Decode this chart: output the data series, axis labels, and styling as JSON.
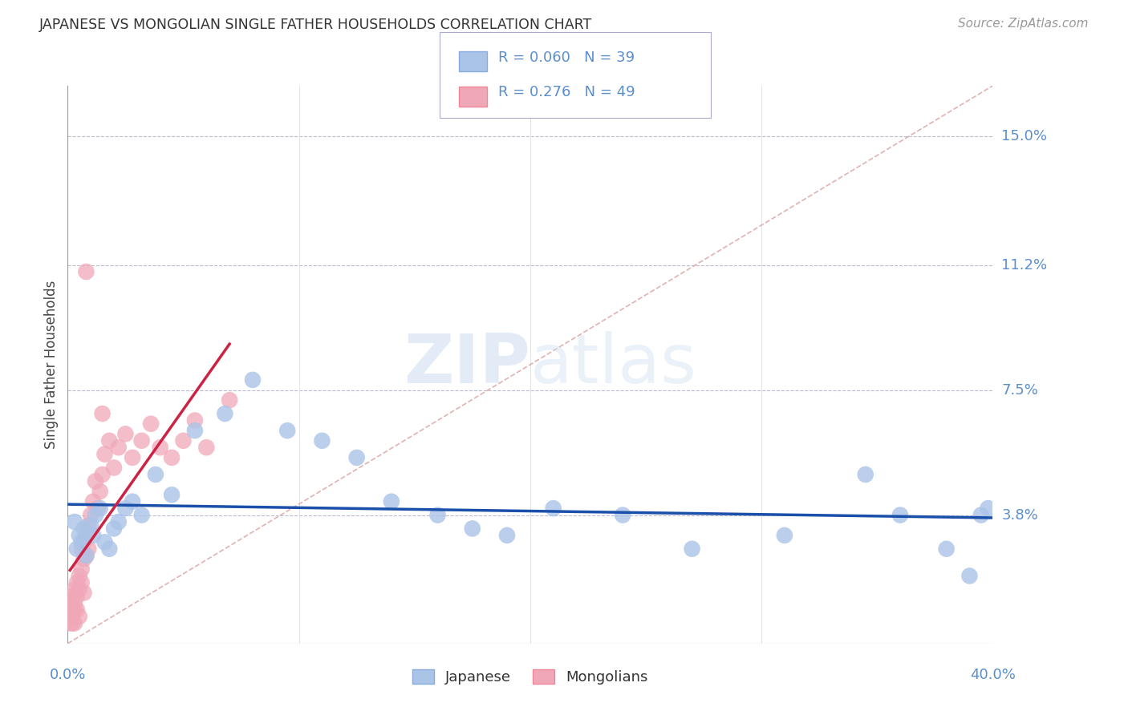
{
  "title": "JAPANESE VS MONGOLIAN SINGLE FATHER HOUSEHOLDS CORRELATION CHART",
  "source": "Source: ZipAtlas.com",
  "ylabel": "Single Father Households",
  "xlim": [
    0.0,
    0.4
  ],
  "ylim": [
    0.0,
    0.165
  ],
  "yticks": [
    0.038,
    0.075,
    0.112,
    0.15
  ],
  "ytick_labels": [
    "3.8%",
    "7.5%",
    "11.2%",
    "15.0%"
  ],
  "xticks": [
    0.0,
    0.1,
    0.2,
    0.3,
    0.4
  ],
  "bg_color": "#ffffff",
  "grid_color": "#bbbbcc",
  "diagonal_color": "#ddaaaa",
  "title_color": "#333333",
  "axis_label_color": "#5b8fcc",
  "japanese_color": "#aac4e8",
  "mongolian_color": "#f0a8b8",
  "japanese_line_color": "#1a4faa",
  "mongolian_line_color": "#cc2244",
  "R_japanese": 0.06,
  "N_japanese": 39,
  "R_mongolian": 0.276,
  "N_mongolian": 49,
  "japanese_x": [
    0.003,
    0.004,
    0.005,
    0.006,
    0.007,
    0.008,
    0.01,
    0.011,
    0.012,
    0.014,
    0.016,
    0.018,
    0.02,
    0.022,
    0.025,
    0.028,
    0.032,
    0.038,
    0.045,
    0.055,
    0.068,
    0.08,
    0.095,
    0.11,
    0.125,
    0.14,
    0.16,
    0.175,
    0.19,
    0.21,
    0.24,
    0.27,
    0.31,
    0.345,
    0.36,
    0.38,
    0.39,
    0.395,
    0.398
  ],
  "japanese_y": [
    0.036,
    0.028,
    0.032,
    0.03,
    0.034,
    0.026,
    0.035,
    0.032,
    0.038,
    0.04,
    0.03,
    0.028,
    0.034,
    0.036,
    0.04,
    0.042,
    0.038,
    0.05,
    0.044,
    0.063,
    0.068,
    0.078,
    0.063,
    0.06,
    0.055,
    0.042,
    0.038,
    0.034,
    0.032,
    0.04,
    0.038,
    0.028,
    0.032,
    0.05,
    0.038,
    0.028,
    0.02,
    0.038,
    0.04
  ],
  "mongolian_x": [
    0.001,
    0.001,
    0.001,
    0.002,
    0.002,
    0.002,
    0.002,
    0.003,
    0.003,
    0.003,
    0.003,
    0.004,
    0.004,
    0.004,
    0.005,
    0.005,
    0.005,
    0.006,
    0.006,
    0.006,
    0.007,
    0.007,
    0.007,
    0.008,
    0.008,
    0.009,
    0.009,
    0.01,
    0.011,
    0.012,
    0.013,
    0.014,
    0.015,
    0.016,
    0.018,
    0.02,
    0.022,
    0.025,
    0.028,
    0.032,
    0.036,
    0.04,
    0.045,
    0.05,
    0.055,
    0.06,
    0.07,
    0.015,
    0.008
  ],
  "mongolian_y": [
    0.008,
    0.012,
    0.006,
    0.01,
    0.008,
    0.014,
    0.006,
    0.012,
    0.016,
    0.01,
    0.006,
    0.014,
    0.01,
    0.018,
    0.02,
    0.016,
    0.008,
    0.022,
    0.028,
    0.018,
    0.03,
    0.025,
    0.015,
    0.032,
    0.026,
    0.035,
    0.028,
    0.038,
    0.042,
    0.048,
    0.04,
    0.045,
    0.05,
    0.056,
    0.06,
    0.052,
    0.058,
    0.062,
    0.055,
    0.06,
    0.065,
    0.058,
    0.055,
    0.06,
    0.066,
    0.058,
    0.072,
    0.068,
    0.11
  ]
}
